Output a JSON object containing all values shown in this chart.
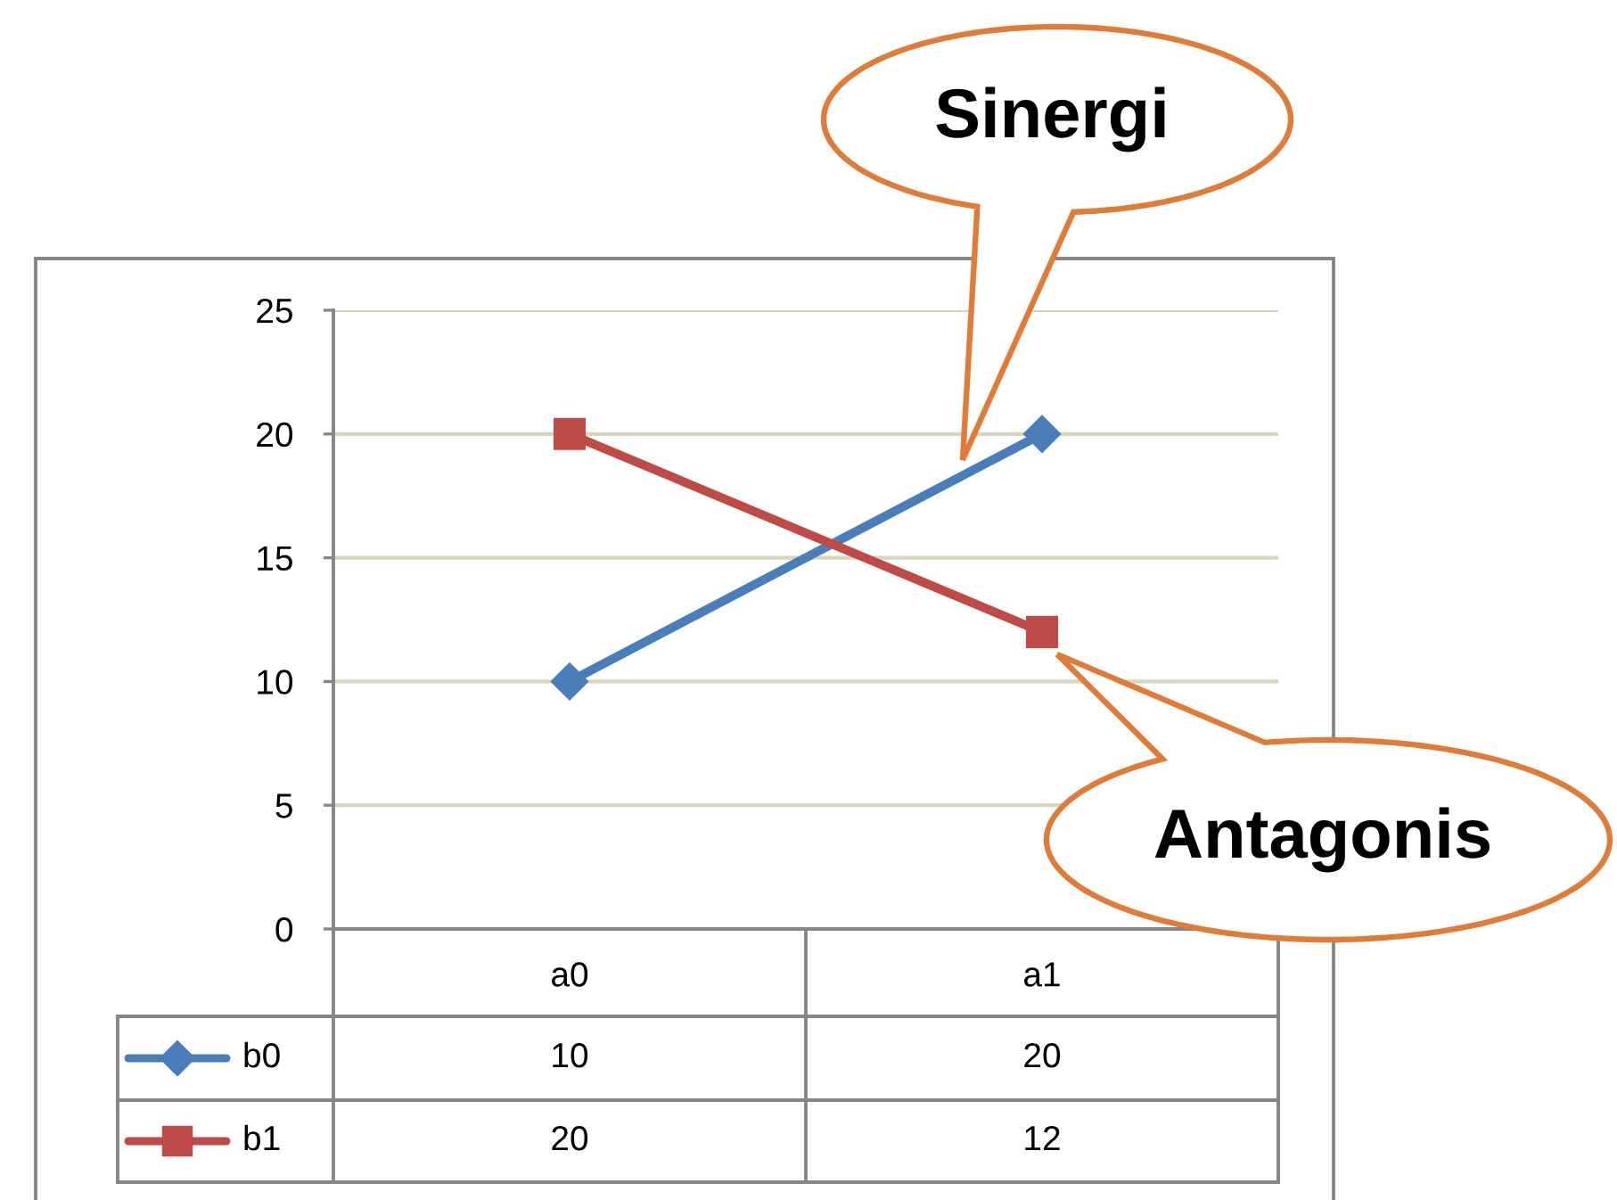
{
  "chart_data": {
    "type": "line",
    "categories": [
      "a0",
      "a1"
    ],
    "series": [
      {
        "name": "b0",
        "color": "#4a7ebb",
        "marker": "diamond",
        "values": [
          10,
          20
        ]
      },
      {
        "name": "b1",
        "color": "#be4b48",
        "marker": "square",
        "values": [
          20,
          12
        ]
      }
    ],
    "ylim": [
      0,
      25
    ],
    "yticks": [
      0,
      5,
      10,
      15,
      20,
      25
    ],
    "grid": "y",
    "legend": "bottom",
    "data_labels": true,
    "line_style": "solid",
    "annotations": [
      "Sinergi",
      "Antagonis"
    ]
  }
}
